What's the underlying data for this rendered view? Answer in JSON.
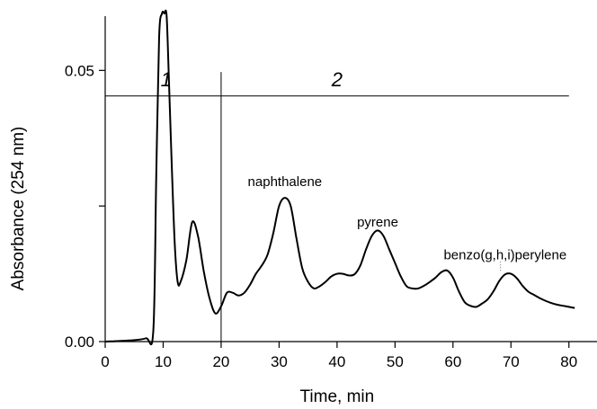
{
  "chart_data": {
    "type": "line",
    "xlabel": "Time, min",
    "ylabel": "Absorbance  (254 nm)",
    "xlim": [
      0,
      85
    ],
    "ylim": [
      0,
      0.06
    ],
    "x_ticks": [
      0,
      10,
      20,
      30,
      40,
      50,
      60,
      70,
      80
    ],
    "y_ticks": [
      0.0,
      0.025,
      0.05
    ],
    "y_tick_labels": [
      "0.00",
      "",
      "0.05"
    ],
    "grid": false,
    "region_labels": [
      "1",
      "2"
    ],
    "reference_lines": {
      "horizontal_y": 0.0453,
      "horizontal_x_range": [
        0,
        80
      ],
      "vertical_x": 20,
      "vertical_y_range": [
        0,
        0.0497
      ]
    },
    "annotations": [
      {
        "text": "naphthalene",
        "x": 31,
        "y": 0.0287
      },
      {
        "text": "pyrene",
        "x": 47,
        "y": 0.0212
      },
      {
        "text": "benzo(g,h,i)perylene",
        "x": 69,
        "y": 0.0152
      }
    ],
    "series": [
      {
        "x": [
          0,
          4,
          7,
          8.3,
          8.8,
          9.3,
          9.8,
          10.2,
          10.6,
          11,
          11.5,
          12,
          12.5,
          13,
          14,
          15,
          16,
          17,
          18,
          19,
          20,
          21,
          22,
          23,
          24,
          25,
          26,
          27,
          28,
          29,
          30,
          31,
          32,
          33,
          34,
          35,
          36,
          37,
          38,
          39,
          40,
          41,
          42,
          43,
          44,
          45,
          46,
          47,
          48,
          49,
          50,
          51,
          52,
          53,
          54,
          55,
          56,
          57,
          58,
          59,
          60,
          61,
          62,
          63,
          64,
          65,
          66,
          67,
          68,
          69,
          70,
          71,
          72,
          73,
          74,
          75,
          76,
          77,
          78,
          79,
          80,
          81
        ],
        "y": [
          0.0,
          0.0002,
          0.0006,
          0.002,
          0.03,
          0.056,
          0.062,
          0.062,
          0.06,
          0.048,
          0.032,
          0.018,
          0.011,
          0.011,
          0.015,
          0.022,
          0.0195,
          0.013,
          0.008,
          0.0052,
          0.0065,
          0.009,
          0.009,
          0.0085,
          0.009,
          0.0105,
          0.0125,
          0.014,
          0.016,
          0.02,
          0.025,
          0.0265,
          0.025,
          0.019,
          0.0135,
          0.011,
          0.0098,
          0.0102,
          0.011,
          0.012,
          0.0125,
          0.0125,
          0.0122,
          0.0124,
          0.014,
          0.017,
          0.0195,
          0.0205,
          0.0195,
          0.017,
          0.0145,
          0.012,
          0.0102,
          0.0098,
          0.0098,
          0.0103,
          0.011,
          0.0118,
          0.0128,
          0.0131,
          0.0118,
          0.0093,
          0.0073,
          0.0066,
          0.0064,
          0.007,
          0.0078,
          0.0093,
          0.0112,
          0.0124,
          0.0125,
          0.0117,
          0.0103,
          0.0092,
          0.0086,
          0.008,
          0.0075,
          0.0071,
          0.0068,
          0.0066,
          0.0064,
          0.0062
        ]
      }
    ]
  }
}
